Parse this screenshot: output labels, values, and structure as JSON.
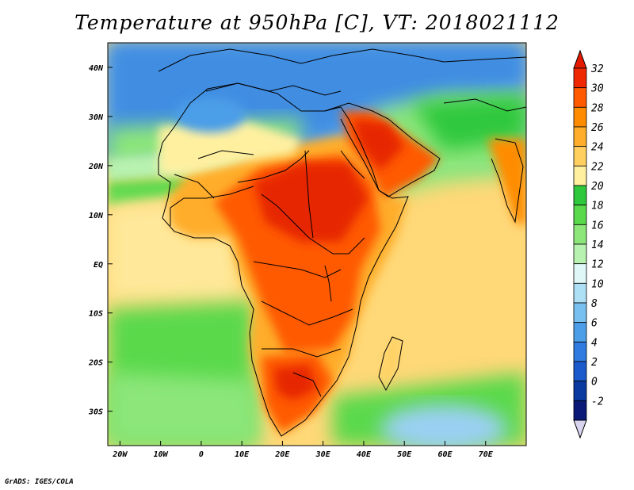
{
  "title": "Temperature at 950hPa [C], VT: 2018021112",
  "credit": "GrADS: IGES/COLA",
  "map": {
    "lon_range": [
      -23,
      80
    ],
    "lat_range": [
      -37,
      45
    ],
    "lon_ticks": [
      {
        "value": -20,
        "label": "20W"
      },
      {
        "value": -10,
        "label": "10W"
      },
      {
        "value": 0,
        "label": "0"
      },
      {
        "value": 10,
        "label": "10E"
      },
      {
        "value": 20,
        "label": "20E"
      },
      {
        "value": 30,
        "label": "30E"
      },
      {
        "value": 40,
        "label": "40E"
      },
      {
        "value": 50,
        "label": "50E"
      },
      {
        "value": 60,
        "label": "60E"
      },
      {
        "value": 70,
        "label": "70E"
      }
    ],
    "lat_ticks": [
      {
        "value": 40,
        "label": "40N"
      },
      {
        "value": 30,
        "label": "30N"
      },
      {
        "value": 20,
        "label": "20N"
      },
      {
        "value": 10,
        "label": "10N"
      },
      {
        "value": 0,
        "label": "EQ"
      },
      {
        "value": -10,
        "label": "10S"
      },
      {
        "value": -20,
        "label": "20S"
      },
      {
        "value": -30,
        "label": "30S"
      }
    ]
  },
  "colorbar": {
    "labels": [
      "32",
      "30",
      "28",
      "26",
      "24",
      "22",
      "20",
      "18",
      "16",
      "14",
      "12",
      "10",
      "8",
      "6",
      "4",
      "2",
      "0",
      "-2"
    ],
    "colors": [
      "#f02800",
      "#ff5a00",
      "#ff8c00",
      "#ffad2a",
      "#ffd060",
      "#fff0a0",
      "#2fc83c",
      "#5ad94c",
      "#8ce67a",
      "#b8f2b0",
      "#dff7f7",
      "#aee0f5",
      "#78c0ef",
      "#4c9ee8",
      "#2f7be0",
      "#1a5acd",
      "#0a3aa0",
      "#0a1878"
    ],
    "top_color": "#e21a00",
    "bottom_color": "#d8d4f0"
  }
}
